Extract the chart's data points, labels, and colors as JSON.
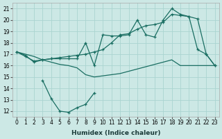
{
  "xlabel": "Humidex (Indice chaleur)",
  "bg_color": "#cce8e5",
  "grid_color": "#aad4d0",
  "line_color": "#1a6e62",
  "xlim": [
    -0.5,
    23.5
  ],
  "ylim": [
    11.5,
    21.5
  ],
  "xticks": [
    0,
    1,
    2,
    3,
    4,
    5,
    6,
    7,
    8,
    9,
    10,
    11,
    12,
    13,
    14,
    15,
    16,
    17,
    18,
    19,
    20,
    21,
    22,
    23
  ],
  "yticks": [
    12,
    13,
    14,
    15,
    16,
    17,
    18,
    19,
    20,
    21
  ],
  "series": [
    {
      "x": [
        0,
        1,
        2,
        3,
        4,
        5,
        6,
        7,
        8,
        9,
        10,
        11,
        12,
        13,
        14,
        15,
        16,
        17,
        18,
        19,
        20,
        21,
        22,
        23
      ],
      "y": [
        17.2,
        16.9,
        16.3,
        16.5,
        16.6,
        16.6,
        16.6,
        16.6,
        18.0,
        16.0,
        18.7,
        18.6,
        18.6,
        18.7,
        20.0,
        18.7,
        18.5,
        20.0,
        21.0,
        20.5,
        20.3,
        17.4,
        17.0,
        16.0
      ],
      "marker": true
    },
    {
      "x": [
        0,
        1,
        2,
        3,
        4,
        5,
        6,
        7,
        8,
        9,
        10,
        11,
        12,
        13,
        14,
        15,
        16,
        17,
        18,
        19,
        20,
        21,
        22,
        23
      ],
      "y": [
        17.2,
        16.8,
        16.4,
        16.5,
        16.6,
        16.7,
        16.8,
        16.9,
        17.0,
        17.2,
        17.4,
        18.0,
        18.7,
        18.8,
        19.2,
        19.5,
        19.6,
        19.8,
        20.5,
        20.4,
        20.3,
        20.1,
        17.0,
        16.0
      ],
      "marker": true
    },
    {
      "x": [
        0,
        1,
        2,
        3,
        4,
        5,
        6,
        7,
        8,
        9,
        10,
        11,
        12,
        13,
        14,
        15,
        16,
        17,
        18,
        19,
        20,
        21,
        22,
        23
      ],
      "y": [
        17.2,
        17.0,
        16.8,
        16.5,
        16.3,
        16.1,
        16.0,
        15.8,
        15.2,
        15.0,
        15.1,
        15.2,
        15.3,
        15.5,
        15.7,
        15.9,
        16.1,
        16.3,
        16.5,
        16.0,
        16.0,
        16.0,
        16.0,
        16.0
      ],
      "marker": false
    },
    {
      "x": [
        3,
        4,
        5,
        6,
        7,
        8,
        9
      ],
      "y": [
        14.7,
        13.1,
        12.0,
        11.9,
        12.3,
        12.6,
        13.6
      ],
      "marker": true
    }
  ]
}
